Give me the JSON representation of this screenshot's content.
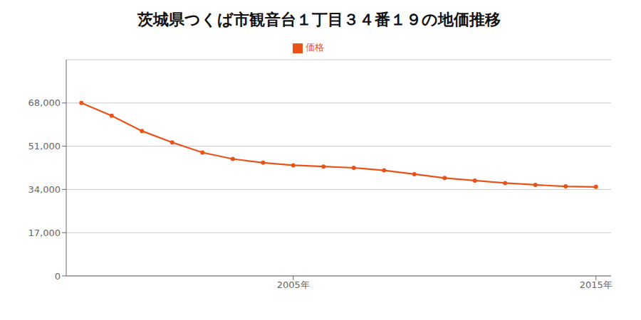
{
  "chart_data": {
    "type": "line",
    "title": "茨城県つくば市観音台１丁目３４番１９の地価推移",
    "x": [
      1998,
      1999,
      2000,
      2001,
      2002,
      2003,
      2004,
      2005,
      2006,
      2007,
      2008,
      2009,
      2010,
      2011,
      2012,
      2013,
      2014,
      2015
    ],
    "series": [
      {
        "name": "価格",
        "color": "#e8531a",
        "marker": "circle",
        "values": [
          68000,
          63000,
          57000,
          52500,
          48500,
          46000,
          44500,
          43500,
          43000,
          42500,
          41500,
          40000,
          38500,
          37500,
          36500,
          35800,
          35200,
          35000
        ]
      }
    ],
    "xlim": [
      1997.5,
      2015.5
    ],
    "xticks": [
      {
        "value": 2005,
        "label": "2005年"
      },
      {
        "value": 2015,
        "label": "2015年"
      }
    ],
    "ylim": [
      0,
      85000
    ],
    "yticks": [
      0,
      {
        "value": 17000,
        "label": "17,000"
      },
      {
        "value": 34000,
        "label": "34,000"
      },
      {
        "value": 51000,
        "label": "51,000"
      },
      {
        "value": 68000,
        "label": "68,000"
      }
    ],
    "grid": "y",
    "legend": "top"
  }
}
